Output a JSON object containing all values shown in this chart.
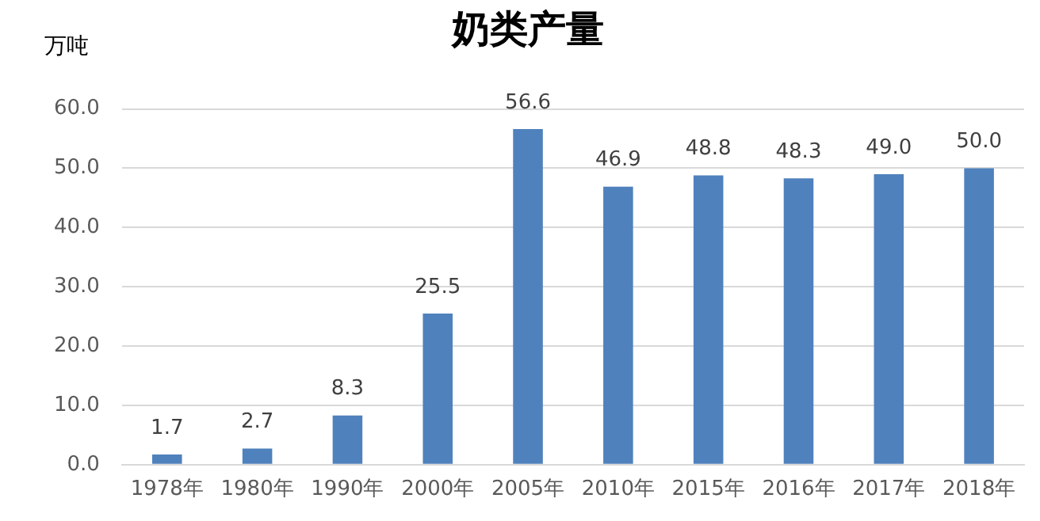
{
  "chart_data": {
    "type": "bar",
    "title": "奶类产量",
    "ylabel": "万吨",
    "categories": [
      "1978年",
      "1980年",
      "1990年",
      "2000年",
      "2005年",
      "2010年",
      "2015年",
      "2016年",
      "2017年",
      "2018年"
    ],
    "values": [
      1.7,
      2.7,
      8.3,
      25.5,
      56.6,
      46.9,
      48.8,
      48.3,
      49.0,
      50.0
    ],
    "value_labels": [
      "1.7",
      "2.7",
      "8.3",
      "25.5",
      "56.6",
      "46.9",
      "48.8",
      "48.3",
      "49.0",
      "50.0"
    ],
    "color": "#4f81bd",
    "ylim": [
      0,
      60
    ],
    "yticks": [
      {
        "value": 0,
        "label": "0.0"
      },
      {
        "value": 10,
        "label": "10.0"
      },
      {
        "value": 20,
        "label": "20.0"
      },
      {
        "value": 30,
        "label": "30.0"
      },
      {
        "value": 40,
        "label": "40.0"
      },
      {
        "value": 50,
        "label": "50.0"
      },
      {
        "value": 60,
        "label": "60.0"
      }
    ],
    "grid": "y",
    "legend": false
  }
}
